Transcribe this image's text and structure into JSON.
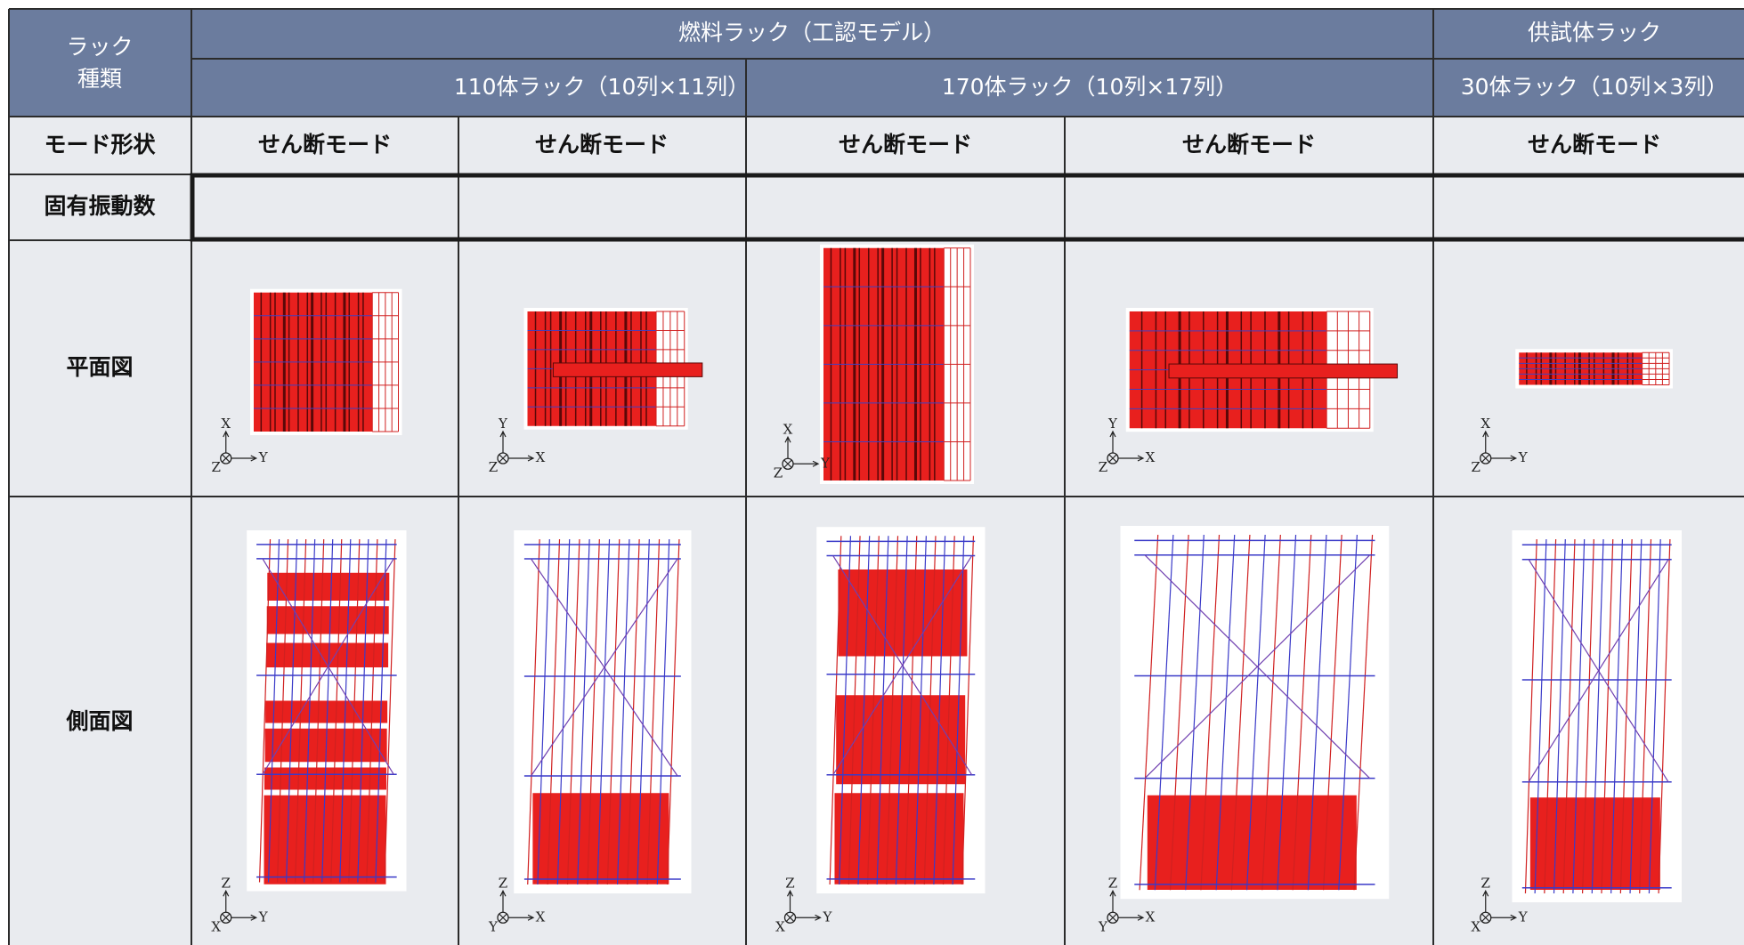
{
  "table": {
    "header": {
      "rack_type": [
        "ラック",
        "種類"
      ],
      "fuel_rack": "燃料ラック（工認モデル）",
      "test_rack": "供試体ラック",
      "subgroups": [
        "110体ラック（10列×11列）",
        "170体ラック（10列×17列）",
        "30体ラック（10列×3列）"
      ]
    },
    "mode_shape": {
      "label": "モード形状",
      "values": [
        "せん断モード",
        "せん断モード",
        "せん断モード",
        "せん断モード",
        "せん断モード"
      ]
    },
    "natural_frequency": {
      "label": "固有振動数"
    },
    "plan_view": {
      "label": "平面図",
      "axes": [
        {
          "up": "X",
          "right": "Y",
          "out": "Z"
        },
        {
          "up": "Y",
          "right": "X",
          "out": "Z"
        },
        {
          "up": "X",
          "right": "Y",
          "out": "Z"
        },
        {
          "up": "Y",
          "right": "X",
          "out": "Z"
        },
        {
          "up": "X",
          "right": "Y",
          "out": "Z"
        }
      ]
    },
    "side_view": {
      "label": "側面図",
      "axes": [
        {
          "up": "Z",
          "right": "Y",
          "out": "X"
        },
        {
          "up": "Z",
          "right": "X",
          "out": "Y"
        },
        {
          "up": "Z",
          "right": "Y",
          "out": "X"
        },
        {
          "up": "Z",
          "right": "X",
          "out": "Y"
        },
        {
          "up": "Z",
          "right": "Y",
          "out": "X"
        }
      ]
    }
  }
}
